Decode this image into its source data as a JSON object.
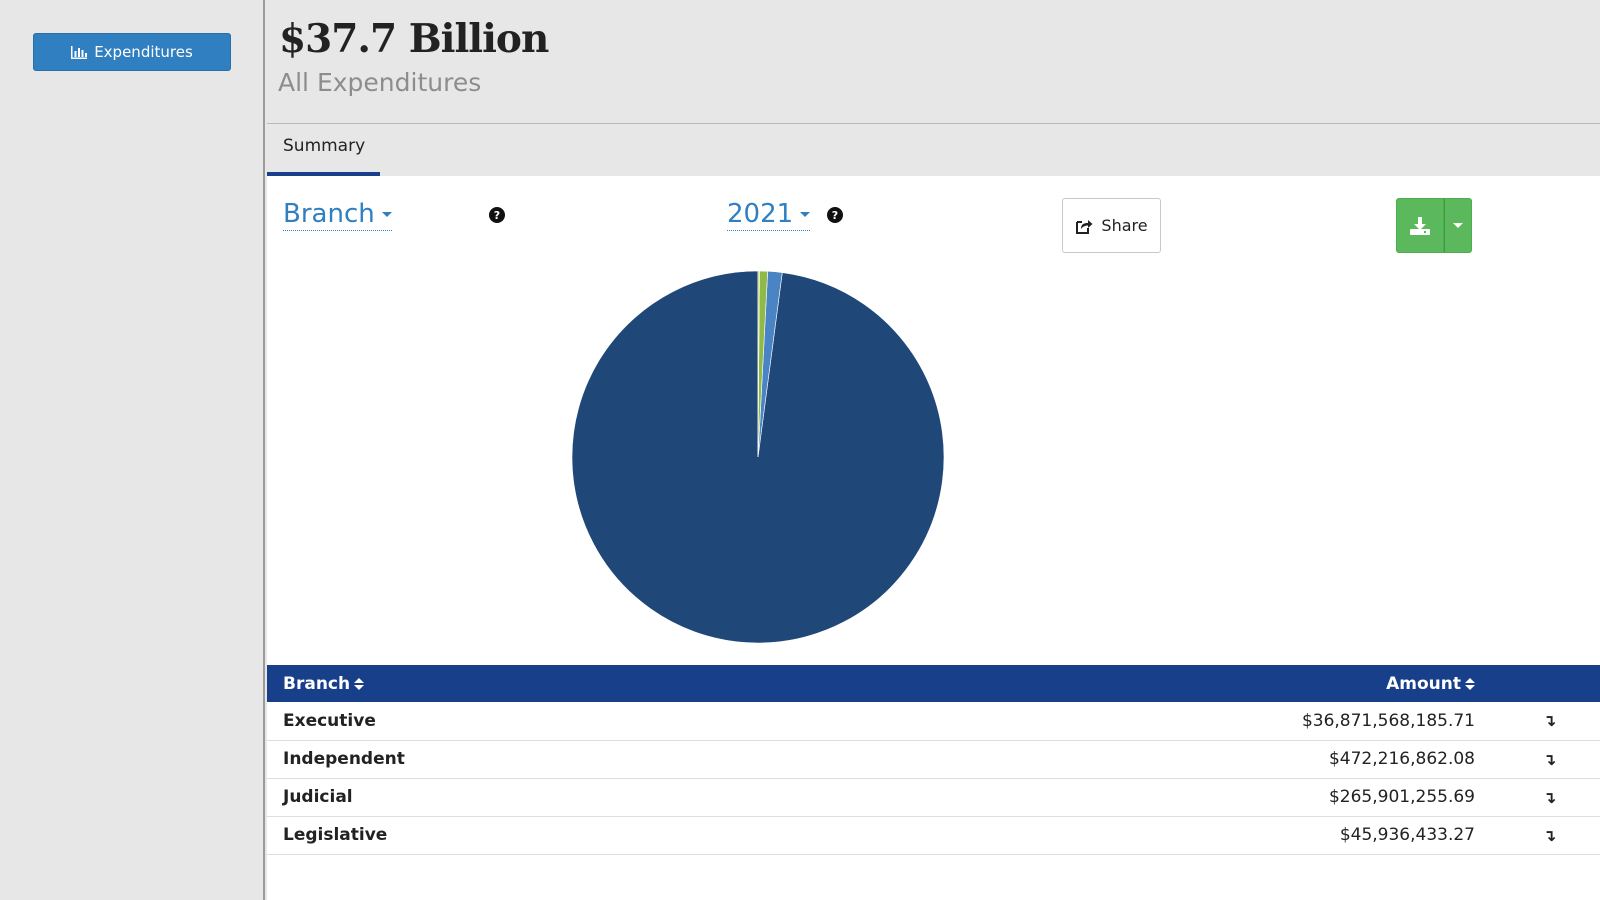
{
  "sidebar": {
    "nav_button": {
      "label": "Expenditures",
      "icon": "bar-chart-icon"
    }
  },
  "header": {
    "total": "$37.7 Billion",
    "subtitle": "All Expenditures"
  },
  "tabs": [
    {
      "label": "Summary",
      "active": true
    }
  ],
  "controls": {
    "group_by": "Branch",
    "year": "2021",
    "help_icon": "question-circle-icon",
    "share_label": "Share",
    "share_icon": "share-icon",
    "download_icon": "download-icon"
  },
  "colors": {
    "primary_blue": "#2f7fc1",
    "navy": "#173f8a",
    "pie_dark": "#1f4778",
    "pie_light_blue": "#4a84c4",
    "pie_green": "#8fba4a",
    "download_green": "#5cb85c"
  },
  "table": {
    "columns": [
      "Branch",
      "Amount"
    ],
    "rows": [
      {
        "branch": "Executive",
        "amount": "$36,871,568,185.71",
        "action": "↴"
      },
      {
        "branch": "Independent",
        "amount": "$472,216,862.08",
        "action": "↴"
      },
      {
        "branch": "Judicial",
        "amount": "$265,901,255.69",
        "action": "↴"
      },
      {
        "branch": "Legislative",
        "amount": "$45,936,433.27",
        "action": "↴"
      }
    ]
  },
  "chart_data": {
    "type": "pie",
    "categories": [
      "Executive",
      "Independent",
      "Judicial",
      "Legislative"
    ],
    "values": [
      36871568185.71,
      472216862.08,
      265901255.69,
      45936433.27
    ],
    "colors": [
      "#1f4778",
      "#4a84c4",
      "#8fba4a",
      "#c9d64b"
    ]
  }
}
